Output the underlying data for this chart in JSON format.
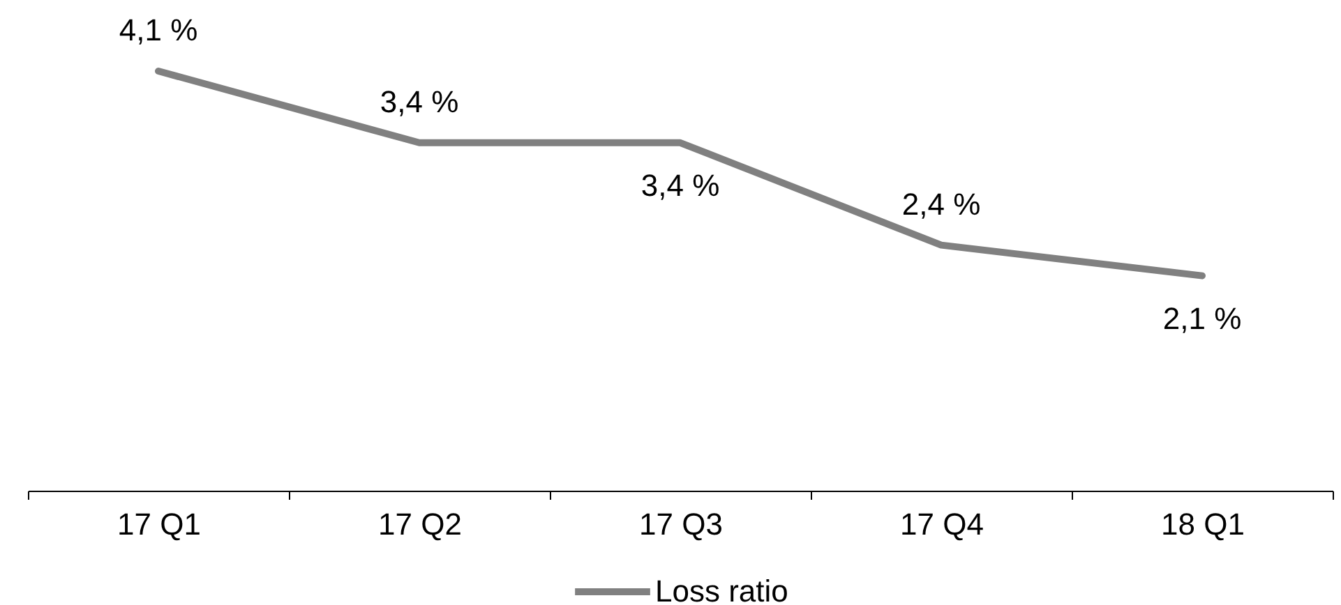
{
  "chart_data": {
    "type": "line",
    "categories": [
      "17 Q1",
      "17 Q2",
      "17 Q3",
      "17 Q4",
      "18 Q1"
    ],
    "series": [
      {
        "name": "Loss ratio",
        "color": "#808080",
        "values": [
          4.1,
          3.4,
          3.4,
          2.4,
          2.1
        ],
        "value_labels": [
          "4,1 %",
          "3,4 %",
          "3,4 %",
          "2,4 %",
          "2,1 %"
        ]
      }
    ],
    "legend": "bottom",
    "line_style": "solid"
  }
}
